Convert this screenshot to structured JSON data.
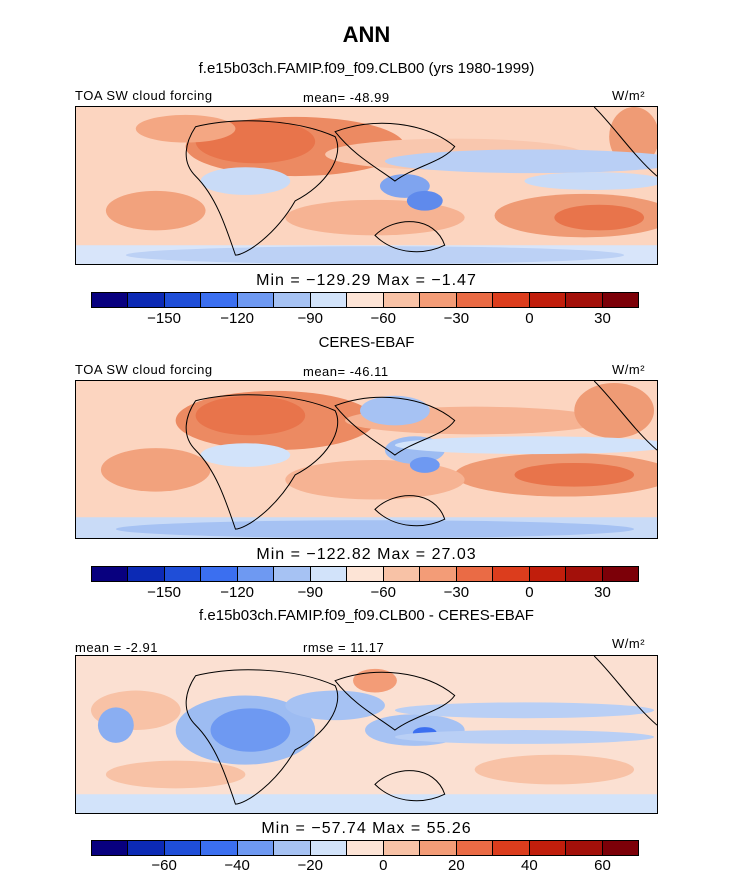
{
  "page_title": "ANN",
  "chart_data": [
    {
      "type": "heatmap",
      "subtitle": "f.e15b03ch.FAMIP.f09_f09.CLB00 (yrs 1980-1999)",
      "variable": "TOA SW cloud forcing",
      "stat_label": "mean= -48.99",
      "units": "W/m²",
      "min": -129.29,
      "max": -1.47,
      "minmax_text": "Min = −129.29 Max = −1.47",
      "colorbar_levels": [
        -150,
        -120,
        -90,
        -60,
        -30,
        0,
        30
      ],
      "colorbar_tick_labels": [
        "−150",
        "−120",
        "−90",
        "−60",
        "−30",
        "0",
        "30"
      ],
      "colorbar_colors": [
        "#08007f",
        "#0c2ab5",
        "#1f4ed8",
        "#3b6ff0",
        "#6e99f2",
        "#a6c2f3",
        "#d2e3fa",
        "#fde4d6",
        "#f8c2a6",
        "#f39c77",
        "#ea6b45",
        "#dc3d1d",
        "#c11e0c",
        "#a3100a",
        "#7c0008"
      ]
    },
    {
      "type": "heatmap",
      "subtitle": "CERES-EBAF",
      "variable": "TOA SW cloud forcing",
      "stat_label": "mean= -46.11",
      "units": "W/m²",
      "min": -122.82,
      "max": 27.03,
      "minmax_text": "Min = −122.82 Max = 27.03",
      "colorbar_levels": [
        -150,
        -120,
        -90,
        -60,
        -30,
        0,
        30
      ],
      "colorbar_tick_labels": [
        "−150",
        "−120",
        "−90",
        "−60",
        "−30",
        "0",
        "30"
      ],
      "colorbar_colors": [
        "#08007f",
        "#0c2ab5",
        "#1f4ed8",
        "#3b6ff0",
        "#6e99f2",
        "#a6c2f3",
        "#d2e3fa",
        "#fde4d6",
        "#f8c2a6",
        "#f39c77",
        "#ea6b45",
        "#dc3d1d",
        "#c11e0c",
        "#a3100a",
        "#7c0008"
      ]
    },
    {
      "type": "heatmap",
      "subtitle": "f.e15b03ch.FAMIP.f09_f09.CLB00 - CERES-EBAF",
      "stat_label": "mean = -2.91",
      "stat_label_2": "rmse = 11.17",
      "units": "W/m²",
      "min": -57.74,
      "max": 55.26,
      "minmax_text": "Min = −57.74 Max = 55.26",
      "colorbar_levels": [
        -60,
        -40,
        -20,
        0,
        20,
        40,
        60
      ],
      "colorbar_tick_labels": [
        "−60",
        "−40",
        "−20",
        "0",
        "20",
        "40",
        "60"
      ],
      "colorbar_colors": [
        "#08007f",
        "#0c2ab5",
        "#1f4ed8",
        "#3b6ff0",
        "#6e99f2",
        "#a6c2f3",
        "#d2e3fa",
        "#fde4d6",
        "#f8c2a6",
        "#f39c77",
        "#ea6b45",
        "#dc3d1d",
        "#c11e0c",
        "#a3100a",
        "#7c0008"
      ]
    }
  ]
}
